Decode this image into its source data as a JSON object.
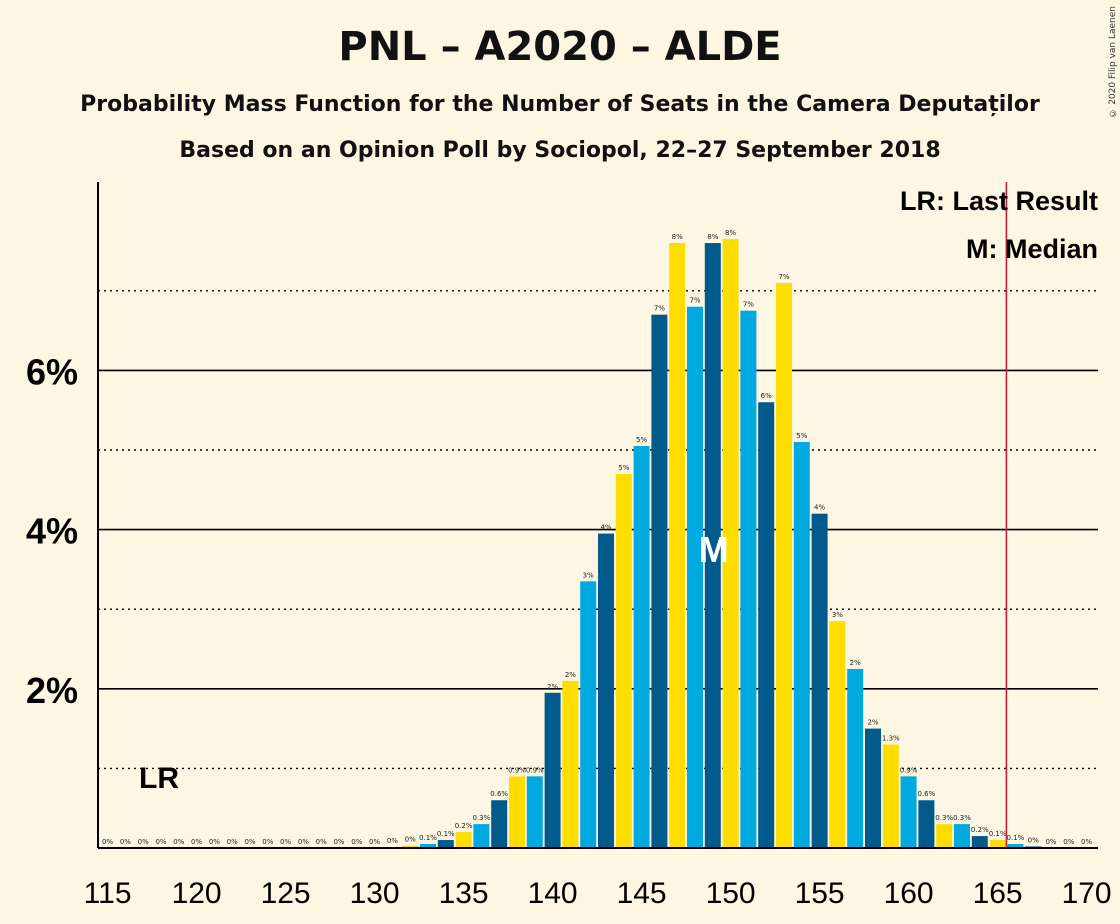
{
  "header": {
    "title": "PNL – A2020 – ALDE",
    "subtitle": "Probability Mass Function for the Number of Seats in the Camera Deputaților",
    "subtitle2": "Based on an Opinion Poll by Sociopol, 22–27 September 2018",
    "copyright": "© 2020 Filip van Laenen"
  },
  "legend": {
    "lr": "LR: Last Result",
    "m": "M: Median"
  },
  "colors": {
    "dark_blue": "#005a8c",
    "yellow": "#ffdd00",
    "light_blue": "#00a9e0",
    "last_result_line": "#c0203a"
  },
  "chart_data": {
    "type": "bar",
    "x": [
      115,
      116,
      117,
      118,
      119,
      120,
      121,
      122,
      123,
      124,
      125,
      126,
      127,
      128,
      129,
      130,
      131,
      132,
      133,
      134,
      135,
      136,
      137,
      138,
      139,
      140,
      141,
      142,
      143,
      144,
      145,
      146,
      147,
      148,
      149,
      150,
      151,
      152,
      153,
      154,
      155,
      156,
      157,
      158,
      159,
      160,
      161,
      162,
      163,
      164,
      165,
      166,
      167,
      168,
      169,
      170
    ],
    "values": [
      0,
      0,
      0,
      0,
      0,
      0,
      0,
      0,
      0,
      0,
      0,
      0,
      0,
      0,
      0,
      0,
      0.01,
      0.03,
      0.05,
      0.1,
      0.2,
      0.3,
      0.6,
      0.9,
      0.9,
      1.95,
      2.1,
      3.35,
      3.95,
      4.7,
      5.05,
      6.7,
      7.6,
      6.8,
      7.6,
      7.65,
      6.75,
      5.6,
      7.1,
      5.1,
      4.2,
      2.85,
      2.25,
      1.5,
      1.3,
      0.9,
      0.6,
      0.3,
      0.3,
      0.15,
      0.1,
      0.05,
      0.02,
      0,
      0,
      0
    ],
    "data_labels": [
      "0%",
      "0%",
      "0%",
      "0%",
      "0%",
      "0%",
      "0%",
      "0%",
      "0%",
      "0%",
      "0%",
      "0%",
      "0%",
      "0%",
      "0%",
      "0%",
      "0%",
      "0%",
      "0.1%",
      "0.1%",
      "0.2%",
      "0.3%",
      "0.6%",
      "0.9%",
      "0.9%",
      "2%",
      "2%",
      "3%",
      "4%",
      "5%",
      "5%",
      "7%",
      "8%",
      "7%",
      "8%",
      "8%",
      "7%",
      "6%",
      "7%",
      "5%",
      "4%",
      "3%",
      "2%",
      "2%",
      "1.3%",
      "0.9%",
      "0.6%",
      "0.3%",
      "0.3%",
      "0.2%",
      "0.1%",
      "0.1%",
      "0%",
      "0%",
      "0%",
      "0%"
    ],
    "x_ticks": [
      115,
      120,
      125,
      130,
      135,
      140,
      145,
      150,
      155,
      160,
      165,
      170
    ],
    "y_ticks": [
      2,
      4,
      6
    ],
    "y_tick_labels": [
      "2%",
      "4%",
      "6%"
    ],
    "ylim": [
      0,
      8.3
    ],
    "last_result": 166,
    "last_result_label": "LR",
    "last_result_label_seat": 118,
    "median": 149,
    "median_label": "M",
    "grid": "solid at 2% steps, dotted at odd %"
  }
}
